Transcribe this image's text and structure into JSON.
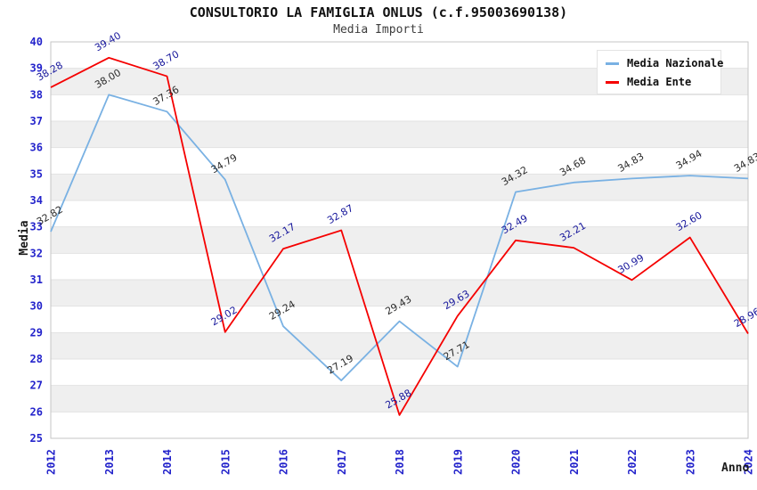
{
  "title": "CONSULTORIO LA FAMIGLIA ONLUS (c.f.95003690138)",
  "subtitle": "Media Importi",
  "chart_data": {
    "type": "line",
    "title": "CONSULTORIO LA FAMIGLIA ONLUS (c.f.95003690138)",
    "subtitle": "Media Importi",
    "xlabel": "Anno",
    "ylabel": "Media",
    "x": [
      "2012",
      "2013",
      "2014",
      "2015",
      "2016",
      "2017",
      "2018",
      "2019",
      "2020",
      "2021",
      "2022",
      "2023",
      "2024"
    ],
    "ylim": [
      25,
      40
    ],
    "ytick_step": 1,
    "grid": true,
    "band_color": "#efefef",
    "gridline_color": "#e2e2e2",
    "plot_border_color": "#c6c6c6",
    "tick_color": "#2323cb",
    "legend_position": "top-right",
    "series": [
      {
        "name": "Media Nazionale",
        "color": "#79b1e3",
        "label_color": "#2a2a2a",
        "values": [
          32.82,
          38.0,
          37.36,
          34.79,
          29.24,
          27.19,
          29.43,
          27.71,
          34.32,
          34.68,
          34.83,
          34.94,
          34.83
        ]
      },
      {
        "name": "Media Ente",
        "color": "#f50000",
        "label_color": "#16169b",
        "values": [
          38.28,
          39.4,
          38.7,
          29.02,
          32.17,
          32.87,
          25.88,
          29.63,
          32.49,
          32.21,
          30.99,
          32.6,
          28.96
        ]
      }
    ]
  }
}
